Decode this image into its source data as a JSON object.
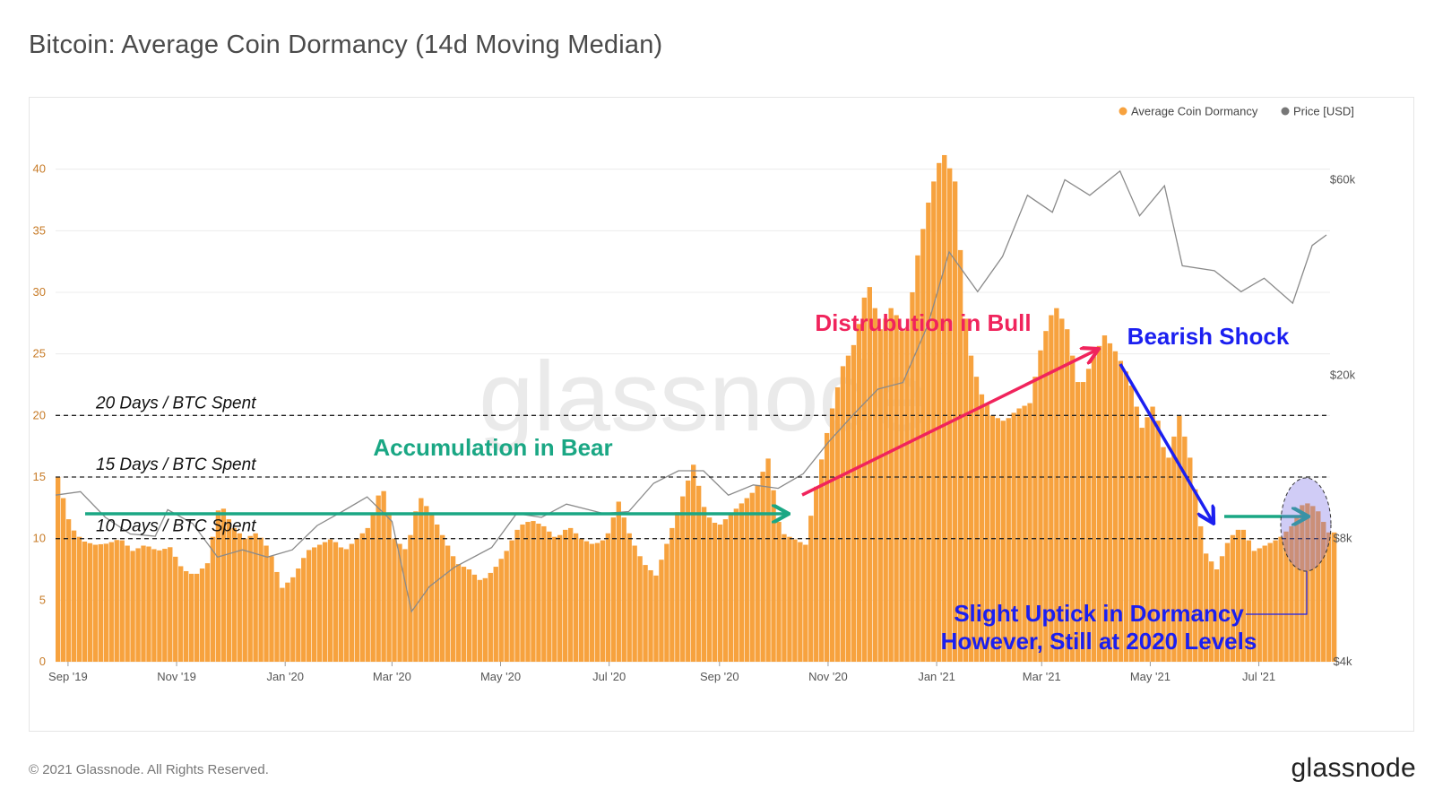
{
  "title": "Bitcoin: Average Coin Dormancy (14d Moving Median)",
  "footer": {
    "copyright": "© 2021 Glassnode. All Rights Reserved.",
    "logo": "glassnode"
  },
  "watermark": "glassnode",
  "colors": {
    "dormancy": "#f7a23e",
    "price": "#8a8a8a",
    "accumulation": "#1aa784",
    "distribution": "#f0245c",
    "bearish": "#1b1ff0"
  },
  "chart_data": {
    "type": "bar",
    "x_range": [
      "2019-08-25",
      "2021-08-10"
    ],
    "x_ticks": [
      "Sep '19",
      "Nov '19",
      "Jan '20",
      "Mar '20",
      "May '20",
      "Jul '20",
      "Sep '20",
      "Nov '20",
      "Jan '21",
      "Mar '21",
      "May '21",
      "Jul '21"
    ],
    "y_left": {
      "ticks": [
        "0",
        "5",
        "10",
        "15",
        "20",
        "25",
        "30",
        "35",
        "40"
      ],
      "ylim": [
        0,
        45
      ]
    },
    "y_right": {
      "ticks": [
        "$4k",
        "$8k",
        "$20k",
        "$60k"
      ],
      "scale": "log",
      "ylim": [
        4000,
        90000
      ]
    },
    "legend": {
      "placement": "top-right",
      "items": [
        "Average Coin Dormancy",
        "Price [USD]"
      ]
    },
    "reference_lines": [
      {
        "y": 20,
        "label": "20 Days / BTC Spent"
      },
      {
        "y": 15,
        "label": "15 Days / BTC Spent"
      },
      {
        "y": 10,
        "label": "10 Days / BTC Spent"
      }
    ],
    "series": [
      {
        "name": "Average Coin Dormancy",
        "type": "bar",
        "points": [
          [
            "2019-08-25",
            15
          ],
          [
            "2019-09-01",
            11
          ],
          [
            "2019-09-08",
            9.8
          ],
          [
            "2019-09-15",
            9.5
          ],
          [
            "2019-09-22",
            9.6
          ],
          [
            "2019-09-29",
            10
          ],
          [
            "2019-10-06",
            9
          ],
          [
            "2019-10-13",
            9.5
          ],
          [
            "2019-10-20",
            9
          ],
          [
            "2019-10-27",
            9.3
          ],
          [
            "2019-11-03",
            7.5
          ],
          [
            "2019-11-10",
            7
          ],
          [
            "2019-11-17",
            8
          ],
          [
            "2019-11-24",
            13
          ],
          [
            "2019-12-01",
            11
          ],
          [
            "2019-12-08",
            10
          ],
          [
            "2019-12-15",
            10.5
          ],
          [
            "2019-12-22",
            9
          ],
          [
            "2019-12-29",
            6
          ],
          [
            "2020-01-05",
            7
          ],
          [
            "2020-01-12",
            9
          ],
          [
            "2020-01-19",
            9.5
          ],
          [
            "2020-01-26",
            10
          ],
          [
            "2020-02-02",
            9
          ],
          [
            "2020-02-09",
            10
          ],
          [
            "2020-02-16",
            11
          ],
          [
            "2020-02-23",
            14.5
          ],
          [
            "2020-03-01",
            10
          ],
          [
            "2020-03-08",
            9
          ],
          [
            "2020-03-15",
            13.5
          ],
          [
            "2020-03-22",
            12
          ],
          [
            "2020-03-29",
            10
          ],
          [
            "2020-04-05",
            8
          ],
          [
            "2020-04-12",
            7.5
          ],
          [
            "2020-04-19",
            6.5
          ],
          [
            "2020-04-26",
            7.5
          ],
          [
            "2020-05-03",
            9
          ],
          [
            "2020-05-10",
            11
          ],
          [
            "2020-05-17",
            11.5
          ],
          [
            "2020-05-24",
            11
          ],
          [
            "2020-05-31",
            10
          ],
          [
            "2020-06-07",
            11
          ],
          [
            "2020-06-14",
            10
          ],
          [
            "2020-06-21",
            9.5
          ],
          [
            "2020-06-28",
            10
          ],
          [
            "2020-07-05",
            13
          ],
          [
            "2020-07-12",
            10
          ],
          [
            "2020-07-19",
            8
          ],
          [
            "2020-07-26",
            7
          ],
          [
            "2020-08-02",
            10
          ],
          [
            "2020-08-09",
            13
          ],
          [
            "2020-08-16",
            16
          ],
          [
            "2020-08-23",
            12
          ],
          [
            "2020-08-30",
            11
          ],
          [
            "2020-09-06",
            12
          ],
          [
            "2020-09-13",
            13
          ],
          [
            "2020-09-20",
            14
          ],
          [
            "2020-09-27",
            16.5
          ],
          [
            "2020-10-04",
            10.5
          ],
          [
            "2020-10-11",
            10
          ],
          [
            "2020-10-18",
            9.5
          ],
          [
            "2020-10-25",
            15
          ],
          [
            "2020-11-01",
            20
          ],
          [
            "2020-11-08",
            24
          ],
          [
            "2020-11-15",
            26
          ],
          [
            "2020-11-22",
            31
          ],
          [
            "2020-11-29",
            27
          ],
          [
            "2020-12-06",
            29
          ],
          [
            "2020-12-13",
            26
          ],
          [
            "2020-12-20",
            33
          ],
          [
            "2020-12-27",
            38
          ],
          [
            "2021-01-03",
            41.5
          ],
          [
            "2021-01-10",
            39
          ],
          [
            "2021-01-17",
            26
          ],
          [
            "2021-01-24",
            22
          ],
          [
            "2021-01-31",
            20
          ],
          [
            "2021-02-07",
            19.5
          ],
          [
            "2021-02-14",
            20.5
          ],
          [
            "2021-02-21",
            21
          ],
          [
            "2021-02-28",
            26
          ],
          [
            "2021-03-07",
            29
          ],
          [
            "2021-03-14",
            27
          ],
          [
            "2021-03-21",
            22
          ],
          [
            "2021-03-28",
            24.5
          ],
          [
            "2021-04-04",
            26.5
          ],
          [
            "2021-04-11",
            25
          ],
          [
            "2021-04-18",
            23
          ],
          [
            "2021-04-25",
            19
          ],
          [
            "2021-05-02",
            21
          ],
          [
            "2021-05-09",
            16
          ],
          [
            "2021-05-16",
            20
          ],
          [
            "2021-05-23",
            16
          ],
          [
            "2021-05-30",
            9
          ],
          [
            "2021-06-06",
            7.5
          ],
          [
            "2021-06-13",
            10
          ],
          [
            "2021-06-20",
            11
          ],
          [
            "2021-06-27",
            9
          ],
          [
            "2021-07-04",
            9.5
          ],
          [
            "2021-07-11",
            10
          ],
          [
            "2021-07-18",
            11
          ],
          [
            "2021-07-25",
            13
          ],
          [
            "2021-08-01",
            12.5
          ],
          [
            "2021-08-08",
            10.5
          ]
        ]
      },
      {
        "name": "Price [USD]",
        "type": "line",
        "points": [
          [
            "2019-08-25",
            10200
          ],
          [
            "2019-09-08",
            10400
          ],
          [
            "2019-09-22",
            9000
          ],
          [
            "2019-10-06",
            8200
          ],
          [
            "2019-10-20",
            8100
          ],
          [
            "2019-10-27",
            9400
          ],
          [
            "2019-11-10",
            8700
          ],
          [
            "2019-11-24",
            7200
          ],
          [
            "2019-12-08",
            7500
          ],
          [
            "2019-12-22",
            7200
          ],
          [
            "2020-01-05",
            7500
          ],
          [
            "2020-01-19",
            8600
          ],
          [
            "2020-02-02",
            9300
          ],
          [
            "2020-02-16",
            10100
          ],
          [
            "2020-03-01",
            8800
          ],
          [
            "2020-03-12",
            5300
          ],
          [
            "2020-03-22",
            6100
          ],
          [
            "2020-04-05",
            6800
          ],
          [
            "2020-04-26",
            7600
          ],
          [
            "2020-05-10",
            9200
          ],
          [
            "2020-05-24",
            9000
          ],
          [
            "2020-06-07",
            9700
          ],
          [
            "2020-06-28",
            9200
          ],
          [
            "2020-07-12",
            9300
          ],
          [
            "2020-07-26",
            10900
          ],
          [
            "2020-08-09",
            11700
          ],
          [
            "2020-08-23",
            11700
          ],
          [
            "2020-09-06",
            10200
          ],
          [
            "2020-09-20",
            10800
          ],
          [
            "2020-10-04",
            10600
          ],
          [
            "2020-10-18",
            11500
          ],
          [
            "2020-11-01",
            13700
          ],
          [
            "2020-11-15",
            16000
          ],
          [
            "2020-11-29",
            18500
          ],
          [
            "2020-12-13",
            19200
          ],
          [
            "2020-12-27",
            26500
          ],
          [
            "2021-01-08",
            40000
          ],
          [
            "2021-01-24",
            32000
          ],
          [
            "2021-02-07",
            39000
          ],
          [
            "2021-02-21",
            55000
          ],
          [
            "2021-03-07",
            50000
          ],
          [
            "2021-03-14",
            60000
          ],
          [
            "2021-03-28",
            55000
          ],
          [
            "2021-04-14",
            63000
          ],
          [
            "2021-04-25",
            49000
          ],
          [
            "2021-05-09",
            58000
          ],
          [
            "2021-05-19",
            37000
          ],
          [
            "2021-06-06",
            36000
          ],
          [
            "2021-06-21",
            32000
          ],
          [
            "2021-07-04",
            34500
          ],
          [
            "2021-07-20",
            30000
          ],
          [
            "2021-07-31",
            41500
          ],
          [
            "2021-08-08",
            44000
          ]
        ]
      }
    ],
    "annotations": [
      {
        "text": "Accumulation in Bear",
        "color": "#1aa784"
      },
      {
        "text": "Distrubution in Bull",
        "color": "#f0245c"
      },
      {
        "text": "Bearish Shock",
        "color": "#1b1ff0"
      },
      {
        "text": "Slight Uptick in Dormancy",
        "color": "#1b1ff0"
      },
      {
        "text": "However, Still at 2020 Levels",
        "color": "#1b1ff0"
      }
    ]
  }
}
